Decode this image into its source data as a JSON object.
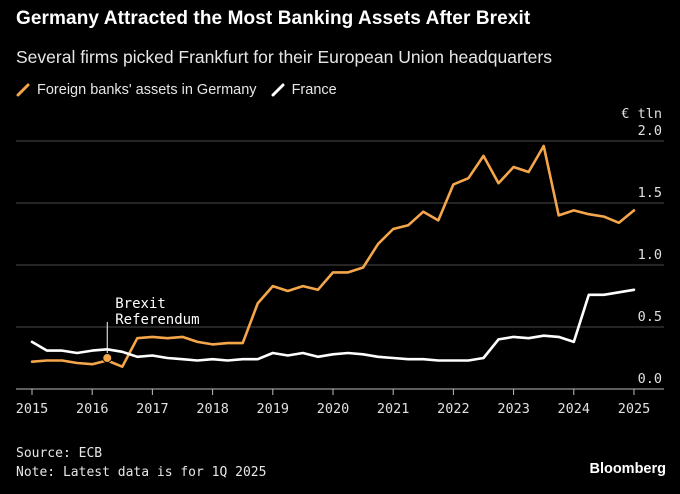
{
  "header": {
    "title": "Germany Attracted the Most Banking Assets After Brexit",
    "subtitle": "Several firms picked Frankfurt for their European Union headquarters"
  },
  "footer": {
    "source": "Source: ECB",
    "note": "Note: Latest data is for 1Q 2025",
    "brand": "Bloomberg"
  },
  "chart_data": {
    "type": "line",
    "unit_label": "€ tln",
    "xlim": [
      2015,
      2025.1
    ],
    "ylim": [
      0,
      2.0
    ],
    "x_ticks": [
      2015,
      2016,
      2017,
      2018,
      2019,
      2020,
      2021,
      2022,
      2023,
      2024,
      2025
    ],
    "x_tick_labels": [
      "2015",
      "2016",
      "2017",
      "2018",
      "2019",
      "2020",
      "2021",
      "2022",
      "2023",
      "2024",
      "2025"
    ],
    "y_ticks": [
      0,
      0.5,
      1.0,
      1.5,
      2.0
    ],
    "y_tick_labels": [
      "0.0",
      "0.5",
      "1.0",
      "1.5",
      "2.0"
    ],
    "grid": "horizontal",
    "legend_position": "top-left",
    "annotation": {
      "lines": [
        "Brexit",
        "Referendum"
      ],
      "x": 2016.25,
      "y": 0.25
    },
    "series": [
      {
        "name": "Foreign banks' assets in Germany",
        "color": "#f5a64b",
        "points": [
          [
            2015.0,
            0.22
          ],
          [
            2015.25,
            0.23
          ],
          [
            2015.5,
            0.23
          ],
          [
            2015.75,
            0.21
          ],
          [
            2016.0,
            0.2
          ],
          [
            2016.25,
            0.23
          ],
          [
            2016.5,
            0.18
          ],
          [
            2016.75,
            0.41
          ],
          [
            2017.0,
            0.42
          ],
          [
            2017.25,
            0.41
          ],
          [
            2017.5,
            0.42
          ],
          [
            2017.75,
            0.38
          ],
          [
            2018.0,
            0.36
          ],
          [
            2018.25,
            0.37
          ],
          [
            2018.5,
            0.37
          ],
          [
            2018.75,
            0.69
          ],
          [
            2019.0,
            0.83
          ],
          [
            2019.25,
            0.79
          ],
          [
            2019.5,
            0.83
          ],
          [
            2019.75,
            0.8
          ],
          [
            2020.0,
            0.94
          ],
          [
            2020.25,
            0.94
          ],
          [
            2020.5,
            0.98
          ],
          [
            2020.75,
            1.17
          ],
          [
            2021.0,
            1.29
          ],
          [
            2021.25,
            1.32
          ],
          [
            2021.5,
            1.43
          ],
          [
            2021.75,
            1.36
          ],
          [
            2022.0,
            1.65
          ],
          [
            2022.25,
            1.7
          ],
          [
            2022.5,
            1.88
          ],
          [
            2022.75,
            1.66
          ],
          [
            2023.0,
            1.79
          ],
          [
            2023.25,
            1.75
          ],
          [
            2023.5,
            1.96
          ],
          [
            2023.75,
            1.4
          ],
          [
            2024.0,
            1.44
          ],
          [
            2024.25,
            1.41
          ],
          [
            2024.5,
            1.39
          ],
          [
            2024.75,
            1.34
          ],
          [
            2025.0,
            1.44
          ]
        ]
      },
      {
        "name": "France",
        "color": "#ffffff",
        "points": [
          [
            2015.0,
            0.38
          ],
          [
            2015.25,
            0.31
          ],
          [
            2015.5,
            0.31
          ],
          [
            2015.75,
            0.29
          ],
          [
            2016.0,
            0.31
          ],
          [
            2016.25,
            0.32
          ],
          [
            2016.5,
            0.3
          ],
          [
            2016.75,
            0.26
          ],
          [
            2017.0,
            0.27
          ],
          [
            2017.25,
            0.25
          ],
          [
            2017.5,
            0.24
          ],
          [
            2017.75,
            0.23
          ],
          [
            2018.0,
            0.24
          ],
          [
            2018.25,
            0.23
          ],
          [
            2018.5,
            0.24
          ],
          [
            2018.75,
            0.24
          ],
          [
            2019.0,
            0.29
          ],
          [
            2019.25,
            0.27
          ],
          [
            2019.5,
            0.29
          ],
          [
            2019.75,
            0.26
          ],
          [
            2020.0,
            0.28
          ],
          [
            2020.25,
            0.29
          ],
          [
            2020.5,
            0.28
          ],
          [
            2020.75,
            0.26
          ],
          [
            2021.0,
            0.25
          ],
          [
            2021.25,
            0.24
          ],
          [
            2021.5,
            0.24
          ],
          [
            2021.75,
            0.23
          ],
          [
            2022.0,
            0.23
          ],
          [
            2022.25,
            0.23
          ],
          [
            2022.5,
            0.25
          ],
          [
            2022.75,
            0.4
          ],
          [
            2023.0,
            0.42
          ],
          [
            2023.25,
            0.41
          ],
          [
            2023.5,
            0.43
          ],
          [
            2023.75,
            0.42
          ],
          [
            2024.0,
            0.38
          ],
          [
            2024.25,
            0.76
          ],
          [
            2024.5,
            0.76
          ],
          [
            2024.75,
            0.78
          ],
          [
            2025.0,
            0.8
          ]
        ]
      }
    ]
  }
}
